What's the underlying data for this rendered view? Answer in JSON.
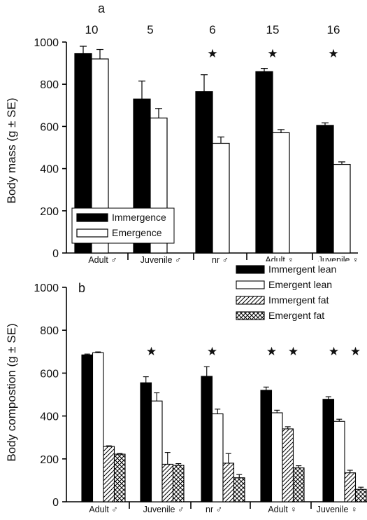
{
  "chart_data": [
    {
      "type": "bar",
      "panel_label": "a",
      "ylabel": "Body mass (g ± SE)",
      "ylim": [
        0,
        1000
      ],
      "yticks": [
        0,
        200,
        400,
        600,
        800,
        1000
      ],
      "categories": [
        "Adult ♂",
        "Juvenile ♂",
        "nr ♂",
        "Adult ♀",
        "Juvenile ♀"
      ],
      "sample_sizes": [
        "10",
        "5",
        "6",
        "15",
        "16"
      ],
      "significant": [
        false,
        false,
        true,
        true,
        true
      ],
      "star_symbol": "★",
      "legend_position": "lower-left",
      "series": [
        {
          "name": "Immergence",
          "values": [
            945,
            730,
            765,
            860,
            605
          ],
          "se": [
            35,
            85,
            80,
            15,
            12
          ],
          "color": "#000000"
        },
        {
          "name": "Emergence",
          "values": [
            920,
            640,
            520,
            570,
            420
          ],
          "se": [
            45,
            45,
            30,
            15,
            12
          ],
          "color": "#ffffff"
        }
      ]
    },
    {
      "type": "bar",
      "panel_label": "b",
      "ylabel": "Body compostion (g ± SE)",
      "ylim": [
        0,
        1000
      ],
      "yticks": [
        0,
        200,
        400,
        600,
        800,
        1000
      ],
      "categories": [
        "Adult ♂",
        "Juvenile ♂",
        "nr ♂",
        "Adult ♀",
        "Juvenile ♀"
      ],
      "star_symbol": "★",
      "stars": [
        {
          "category": 1,
          "pair": "lean"
        },
        {
          "category": 2,
          "pair": "lean"
        },
        {
          "category": 3,
          "pair": "lean"
        },
        {
          "category": 3,
          "pair": "fat"
        },
        {
          "category": 4,
          "pair": "lean"
        },
        {
          "category": 4,
          "pair": "fat"
        }
      ],
      "legend_position": "top-right",
      "series": [
        {
          "name": "Immergent lean",
          "values": [
            685,
            555,
            585,
            520,
            478
          ],
          "se": [
            4,
            28,
            45,
            15,
            12
          ],
          "pattern": "solid-black"
        },
        {
          "name": "Emergent lean",
          "values": [
            695,
            470,
            410,
            415,
            375
          ],
          "se": [
            4,
            38,
            22,
            12,
            10
          ],
          "pattern": "white"
        },
        {
          "name": "Immergent fat",
          "values": [
            258,
            175,
            180,
            340,
            135
          ],
          "se": [
            3,
            55,
            45,
            10,
            12
          ],
          "pattern": "hatch"
        },
        {
          "name": "Emergent fat",
          "values": [
            222,
            170,
            112,
            158,
            58
          ],
          "se": [
            3,
            8,
            15,
            10,
            10
          ],
          "pattern": "crosshatch"
        }
      ]
    }
  ]
}
